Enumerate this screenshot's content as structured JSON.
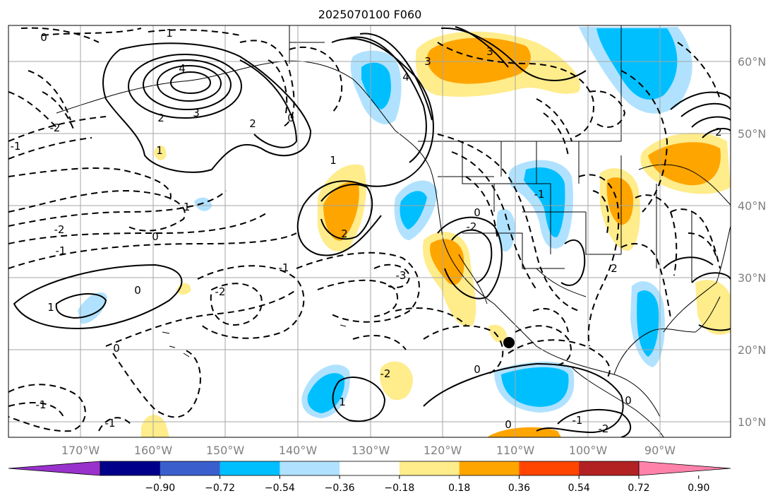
{
  "title": "2025070100 F060",
  "map": {
    "lon_labels": [
      "170°W",
      "160°W",
      "150°W",
      "140°W",
      "130°W",
      "120°W",
      "110°W",
      "100°W",
      "90°W"
    ],
    "lat_labels": [
      "60°N",
      "50°N",
      "40°N",
      "30°N",
      "20°N",
      "10°N"
    ],
    "marker_color": "#000000"
  },
  "colorbar": {
    "ticks": [
      "−0.90",
      "−0.72",
      "−0.54",
      "−0.36",
      "−0.18",
      "0.18",
      "0.36",
      "0.54",
      "0.72",
      "0.90"
    ],
    "colors": [
      "#9932cc",
      "#00008b",
      "#3a5fcd",
      "#00bfff",
      "#b0e2ff",
      "#ffffff",
      "#ffec8b",
      "#ffa500",
      "#ff4500",
      "#b22222",
      "#ff82ab"
    ]
  },
  "contour_labels": [
    "0",
    "1",
    "4",
    "2",
    "3",
    "0",
    "-2",
    "-1",
    "1",
    "-2",
    "-1",
    "2",
    "0",
    "-1",
    "-3",
    "-2",
    "-1",
    "2",
    "0",
    "0",
    "1",
    "-1",
    "4",
    "3",
    "3",
    "0",
    "-1",
    "-2",
    "2",
    "1",
    "1",
    "-2",
    "0",
    "0",
    "0",
    "-1",
    "-2",
    "-1",
    "2"
  ]
}
